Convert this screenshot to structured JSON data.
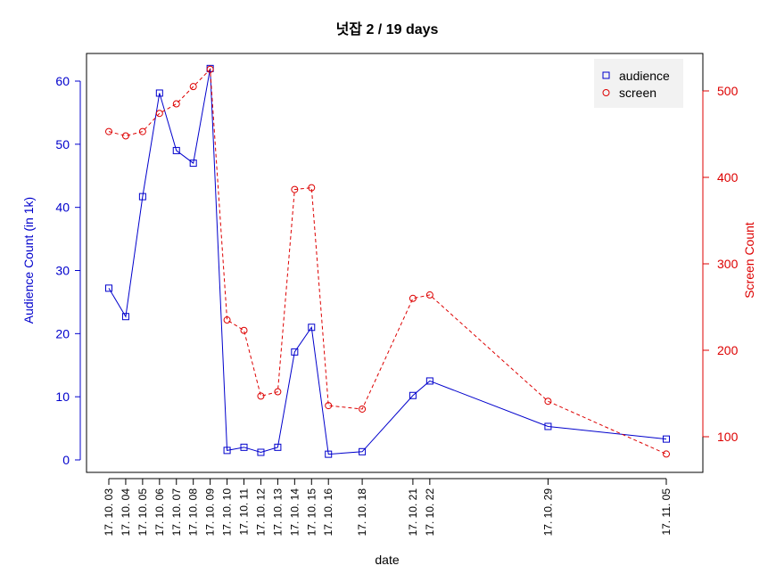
{
  "chart_data": {
    "type": "line",
    "title": "넛잡 2 / 19 days",
    "xlabel": "date",
    "ylabel_left": "Audience Count (in 1k)",
    "ylabel_right": "Screen Count",
    "ylim_left": [
      0,
      60
    ],
    "yticks_left": [
      0,
      10,
      20,
      30,
      40,
      50,
      60
    ],
    "ylim_right": [
      100,
      500
    ],
    "yticks_right": [
      100,
      200,
      300,
      400,
      500
    ],
    "x": [
      "2017-10-03",
      "2017-10-04",
      "2017-10-05",
      "2017-10-06",
      "2017-10-07",
      "2017-10-08",
      "2017-10-09",
      "2017-10-10",
      "2017-10-11",
      "2017-10-12",
      "2017-10-13",
      "2017-10-14",
      "2017-10-15",
      "2017-10-16",
      "2017-10-18",
      "2017-10-21",
      "2017-10-22",
      "2017-10-29",
      "2017-11-05"
    ],
    "x_tick_labels": [
      "17. 10. 03",
      "17. 10. 04",
      "17. 10. 05",
      "17. 10. 06",
      "17. 10. 07",
      "17. 10. 08",
      "17. 10. 09",
      "17. 10. 10",
      "17. 10. 11",
      "17. 10. 12",
      "17. 10. 13",
      "17. 10. 14",
      "17. 10. 15",
      "17. 10. 16",
      "17. 10. 18",
      "17. 10. 21",
      "17. 10. 22",
      "17. 10. 29",
      "17. 11. 05"
    ],
    "series": [
      {
        "name": "audience",
        "axis": "left",
        "color": "#0000cc",
        "line_style": "solid",
        "marker": "square",
        "values": [
          27.2,
          22.7,
          41.7,
          58.1,
          49.0,
          47.0,
          62.0,
          1.5,
          2.0,
          1.2,
          2.0,
          17.1,
          21.0,
          0.9,
          1.3,
          10.2,
          12.5,
          5.3,
          3.3
        ]
      },
      {
        "name": "screen",
        "axis": "right",
        "color": "#dd0000",
        "line_style": "dashed",
        "marker": "circle",
        "values": [
          453,
          448,
          453,
          474,
          485,
          505,
          525,
          235,
          223,
          147,
          152,
          386,
          388,
          136,
          132,
          260,
          264,
          141,
          80
        ]
      }
    ],
    "legend_position": "top-right",
    "legend": [
      "audience",
      "screen"
    ]
  }
}
